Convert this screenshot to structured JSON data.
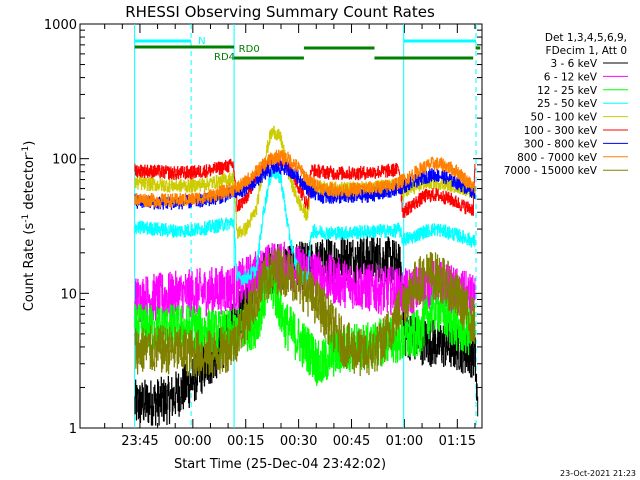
{
  "chart_data": {
    "type": "line",
    "title": "RHESSI Observing Summary Count Rates",
    "xlabel": "Start Time (25-Dec-04 23:42:02)",
    "ylabel_main": "Count Rate (s",
    "ylabel_sup1": "-1",
    "ylabel_mid": " detector",
    "ylabel_sup2": "-1",
    "ylabel_end": ")",
    "yscale": "log",
    "ylim": [
      1,
      1000
    ],
    "xlim_minutes": [
      -17.0,
      97.0
    ],
    "x_ticks": [
      {
        "m": 0,
        "label": "23:45"
      },
      {
        "m": 15,
        "label": "00:00"
      },
      {
        "m": 30,
        "label": "00:15"
      },
      {
        "m": 45,
        "label": "00:30"
      },
      {
        "m": 60,
        "label": "00:45"
      },
      {
        "m": 75,
        "label": "01:00"
      },
      {
        "m": 90,
        "label": "01:15"
      }
    ],
    "y_ticks": [
      {
        "v": 1,
        "label": "1"
      },
      {
        "v": 10,
        "label": "10"
      },
      {
        "v": 100,
        "label": "100"
      },
      {
        "v": 1000,
        "label": "1000"
      }
    ],
    "legend_header": [
      "Det 1,3,4,5,6,9,",
      "FDecim 1, Att 0"
    ],
    "legend_position": "right",
    "series": [
      {
        "name": "3 - 6 keV",
        "color": "#000000",
        "points": [
          [
            -1.5,
            1.5
          ],
          [
            8,
            1.6
          ],
          [
            14,
            2.1
          ],
          [
            17,
            2.6
          ],
          [
            22,
            3.5
          ],
          [
            26,
            5.5
          ],
          [
            28,
            7
          ],
          [
            30,
            9
          ],
          [
            33,
            12
          ],
          [
            37,
            15
          ],
          [
            41,
            16
          ],
          [
            45,
            16
          ],
          [
            48,
            16
          ],
          [
            52,
            17
          ],
          [
            56,
            18
          ],
          [
            60,
            18
          ],
          [
            64,
            18
          ],
          [
            68,
            18
          ],
          [
            72,
            17
          ],
          [
            74,
            15
          ],
          [
            75,
            5
          ],
          [
            79,
            4.5
          ],
          [
            85,
            4.2
          ],
          [
            90,
            4
          ],
          [
            95,
            3.5
          ],
          [
            95.8,
            1.2
          ]
        ]
      },
      {
        "name": "6 - 12 keV",
        "color": "#ff00ff",
        "points": [
          [
            -1.5,
            9
          ],
          [
            8,
            9.5
          ],
          [
            15,
            10
          ],
          [
            22,
            10.5
          ],
          [
            27,
            11
          ],
          [
            31,
            13
          ],
          [
            35,
            15
          ],
          [
            38,
            16
          ],
          [
            41,
            16
          ],
          [
            45,
            15
          ],
          [
            49,
            14
          ],
          [
            53,
            13
          ],
          [
            57,
            12
          ],
          [
            61,
            11.5
          ],
          [
            65,
            11
          ],
          [
            69,
            10.5
          ],
          [
            72,
            10.5
          ],
          [
            75,
            10
          ],
          [
            80,
            11
          ],
          [
            84,
            12
          ],
          [
            87,
            11
          ],
          [
            91,
            10
          ],
          [
            95,
            9
          ]
        ]
      },
      {
        "name": "12 - 25 keV",
        "color": "#00ff00",
        "points": [
          [
            -1.5,
            5.5
          ],
          [
            15,
            5.5
          ],
          [
            22,
            5
          ],
          [
            26,
            5
          ],
          [
            30,
            5.5
          ],
          [
            33,
            6
          ],
          [
            35,
            9
          ],
          [
            37,
            12
          ],
          [
            39,
            9
          ],
          [
            41,
            6
          ],
          [
            45,
            4.5
          ],
          [
            49,
            3.5
          ],
          [
            51,
            2.8
          ],
          [
            54,
            3.5
          ],
          [
            60,
            4
          ],
          [
            65,
            4
          ],
          [
            70,
            4.5
          ],
          [
            75,
            4.5
          ],
          [
            79,
            5
          ],
          [
            82,
            7
          ],
          [
            84,
            8
          ],
          [
            86,
            7
          ],
          [
            90,
            5.5
          ],
          [
            95,
            5
          ]
        ]
      },
      {
        "name": "25 - 50 keV",
        "color": "#00ffff",
        "points": [
          [
            -1.5,
            31
          ],
          [
            5,
            30
          ],
          [
            10,
            29
          ],
          [
            15,
            29.5
          ],
          [
            20,
            31
          ],
          [
            25,
            33
          ],
          [
            26.5,
            34
          ],
          [
            27.5,
            13
          ],
          [
            30,
            13
          ],
          [
            33,
            15
          ],
          [
            35,
            40
          ],
          [
            37,
            75
          ],
          [
            38,
            80
          ],
          [
            40,
            70
          ],
          [
            42,
            30
          ],
          [
            44,
            17
          ],
          [
            46,
            13
          ],
          [
            47.5,
            13
          ],
          [
            48.5,
            29
          ],
          [
            55,
            28
          ],
          [
            62,
            28.5
          ],
          [
            68,
            29
          ],
          [
            72,
            29
          ],
          [
            73.5,
            30
          ],
          [
            74.5,
            25
          ],
          [
            77,
            26
          ],
          [
            81,
            29
          ],
          [
            84,
            30
          ],
          [
            88,
            28
          ],
          [
            92,
            26
          ],
          [
            95,
            24
          ]
        ]
      },
      {
        "name": "50 - 100 keV",
        "color": "#cccc00",
        "points": [
          [
            -1.5,
            66
          ],
          [
            5,
            64
          ],
          [
            10,
            63
          ],
          [
            15,
            63
          ],
          [
            20,
            66
          ],
          [
            25,
            70
          ],
          [
            26.5,
            72
          ],
          [
            27.5,
            28
          ],
          [
            30,
            30
          ],
          [
            33,
            42
          ],
          [
            35,
            90
          ],
          [
            37,
            150
          ],
          [
            38,
            160
          ],
          [
            40,
            140
          ],
          [
            42,
            80
          ],
          [
            44,
            55
          ],
          [
            46,
            42
          ],
          [
            47.5,
            38
          ],
          [
            48.5,
            62
          ],
          [
            55,
            60
          ],
          [
            62,
            60
          ],
          [
            68,
            62
          ],
          [
            72,
            63
          ],
          [
            73.5,
            65
          ],
          [
            74.5,
            55
          ],
          [
            77,
            60
          ],
          [
            81,
            66
          ],
          [
            84,
            67
          ],
          [
            88,
            64
          ],
          [
            92,
            60
          ],
          [
            95,
            55
          ]
        ]
      },
      {
        "name": "100 - 300 keV",
        "color": "#ff0000",
        "points": [
          [
            -1.5,
            82
          ],
          [
            5,
            80
          ],
          [
            10,
            78
          ],
          [
            15,
            79
          ],
          [
            20,
            82
          ],
          [
            25,
            88
          ],
          [
            26.5,
            90
          ],
          [
            27.5,
            44
          ],
          [
            30,
            50
          ],
          [
            33,
            75
          ],
          [
            36,
            95
          ],
          [
            38,
            100
          ],
          [
            41,
            95
          ],
          [
            44,
            70
          ],
          [
            47,
            48
          ],
          [
            47.5,
            46
          ],
          [
            48.5,
            82
          ],
          [
            55,
            78
          ],
          [
            62,
            78
          ],
          [
            68,
            80
          ],
          [
            72,
            82
          ],
          [
            73.5,
            84
          ],
          [
            74.5,
            40
          ],
          [
            77,
            45
          ],
          [
            81,
            53
          ],
          [
            84,
            54
          ],
          [
            88,
            50
          ],
          [
            92,
            44
          ],
          [
            94.5,
            42
          ],
          [
            95,
            92
          ]
        ]
      },
      {
        "name": "300 - 800 keV",
        "color": "#0000ff",
        "points": [
          [
            -1.5,
            48
          ],
          [
            5,
            47
          ],
          [
            10,
            47
          ],
          [
            15,
            48
          ],
          [
            20,
            50
          ],
          [
            25,
            54
          ],
          [
            27,
            56
          ],
          [
            29,
            58
          ],
          [
            33,
            68
          ],
          [
            36,
            80
          ],
          [
            39,
            86
          ],
          [
            42,
            84
          ],
          [
            45,
            72
          ],
          [
            48,
            58
          ],
          [
            52,
            52
          ],
          [
            58,
            52
          ],
          [
            64,
            53
          ],
          [
            70,
            56
          ],
          [
            73,
            60
          ],
          [
            76,
            64
          ],
          [
            80,
            72
          ],
          [
            83,
            76
          ],
          [
            86,
            74
          ],
          [
            90,
            66
          ],
          [
            95,
            56
          ]
        ]
      },
      {
        "name": "800 - 7000 keV",
        "color": "#ff8000",
        "points": [
          [
            -1.5,
            50
          ],
          [
            5,
            49
          ],
          [
            10,
            49
          ],
          [
            15,
            50
          ],
          [
            20,
            53
          ],
          [
            25,
            58
          ],
          [
            27,
            60
          ],
          [
            29,
            64
          ],
          [
            33,
            80
          ],
          [
            36,
            95
          ],
          [
            39,
            105
          ],
          [
            42,
            100
          ],
          [
            45,
            85
          ],
          [
            48,
            68
          ],
          [
            52,
            60
          ],
          [
            58,
            58
          ],
          [
            64,
            60
          ],
          [
            70,
            62
          ],
          [
            73,
            66
          ],
          [
            76,
            72
          ],
          [
            80,
            85
          ],
          [
            83,
            92
          ],
          [
            86,
            90
          ],
          [
            90,
            80
          ],
          [
            95,
            60
          ]
        ]
      },
      {
        "name": "7000 - 15000 keV",
        "color": "#808000",
        "points": [
          [
            -1.5,
            3.8
          ],
          [
            10,
            3.8
          ],
          [
            15,
            3.6
          ],
          [
            20,
            3.5
          ],
          [
            24,
            3.8
          ],
          [
            27,
            4.5
          ],
          [
            30,
            6.5
          ],
          [
            33,
            9.5
          ],
          [
            36,
            13
          ],
          [
            39,
            15
          ],
          [
            42,
            14
          ],
          [
            45,
            12
          ],
          [
            48,
            10
          ],
          [
            51,
            8
          ],
          [
            54,
            6
          ],
          [
            57,
            4.5
          ],
          [
            60,
            3.8
          ],
          [
            64,
            3.5
          ],
          [
            68,
            4
          ],
          [
            71,
            5.5
          ],
          [
            74,
            8
          ],
          [
            77,
            11
          ],
          [
            80,
            13
          ],
          [
            82,
            14
          ],
          [
            85,
            13
          ],
          [
            88,
            11
          ],
          [
            91,
            8.5
          ],
          [
            93,
            7
          ],
          [
            95,
            6
          ]
        ]
      }
    ],
    "overlays": {
      "attenuator_label": "N",
      "rdo_label": "RD0",
      "rd4_label": "RD4"
    },
    "footer_timestamp": "23-Oct-2021 21:23"
  }
}
